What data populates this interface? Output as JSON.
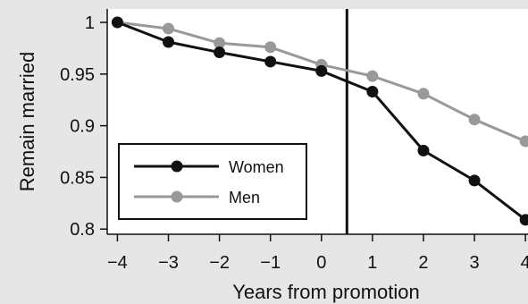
{
  "chart_data": {
    "type": "line",
    "title": "",
    "xlabel": "Years from promotion",
    "ylabel": "Remain married",
    "x": [
      -4,
      -3,
      -2,
      -1,
      0,
      1,
      2,
      3,
      4
    ],
    "x_tick_labels": [
      "−4",
      "−3",
      "−2",
      "−1",
      "0",
      "1",
      "2",
      "3",
      "4"
    ],
    "y_ticks": [
      0.8,
      0.85,
      0.9,
      0.95,
      1
    ],
    "y_tick_labels": [
      "0.8",
      "0.85",
      "0.9",
      "0.95",
      "1"
    ],
    "xlim": [
      -4.2,
      4.05
    ],
    "ylim": [
      0.795,
      1.013
    ],
    "vertical_line_x": 0.5,
    "grid": false,
    "legend_position": "bottom-left",
    "series": [
      {
        "name": "Women",
        "color": "#111111",
        "values": [
          1.0,
          0.981,
          0.971,
          0.962,
          0.953,
          0.933,
          0.876,
          0.847,
          0.809
        ]
      },
      {
        "name": "Men",
        "color": "#999999",
        "values": [
          1.0,
          0.994,
          0.98,
          0.976,
          0.959,
          0.948,
          0.931,
          0.906,
          0.885
        ]
      }
    ]
  }
}
